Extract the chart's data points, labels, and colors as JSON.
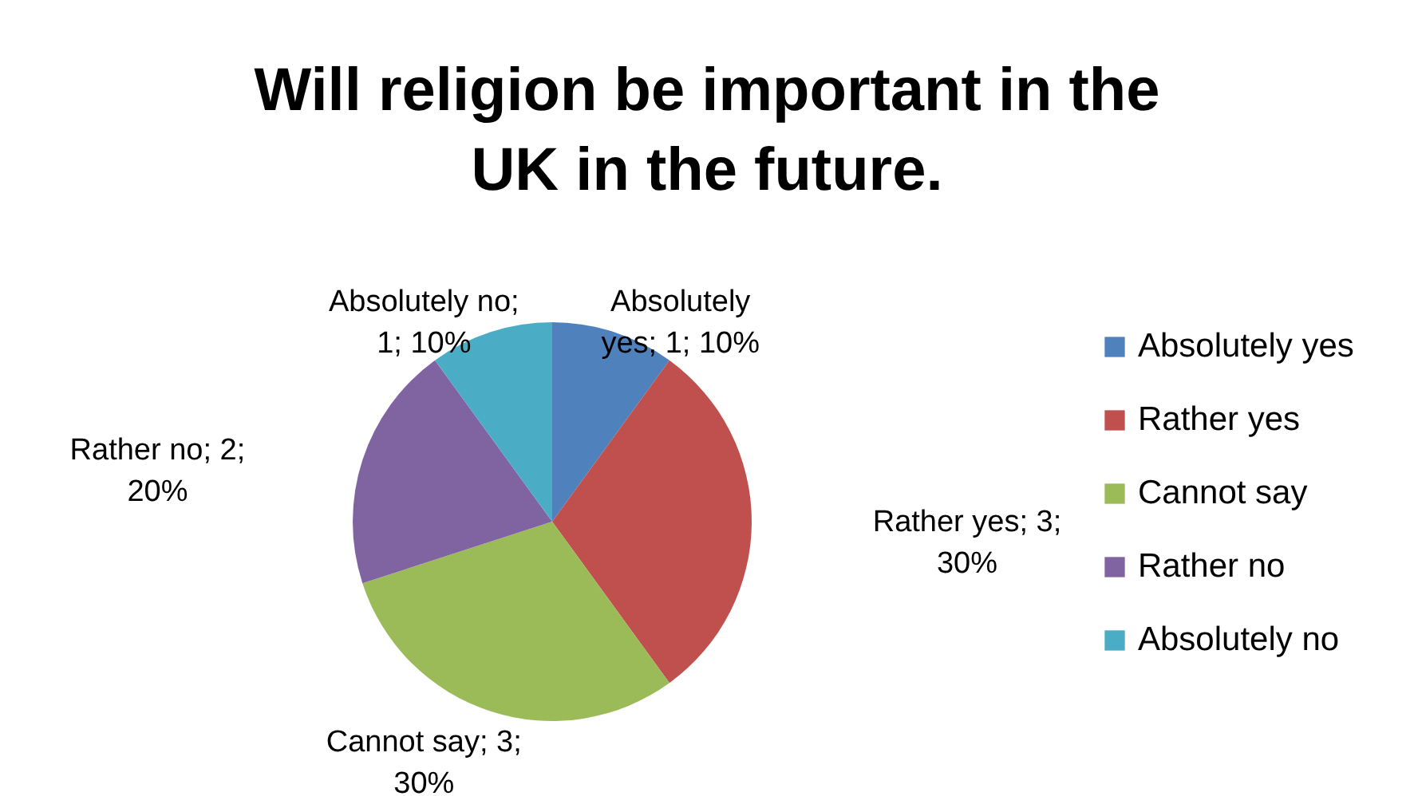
{
  "chart_data": {
    "type": "pie",
    "title": "Will religion be important in the UK in the future.",
    "categories": [
      "Absolutely yes",
      "Rather yes",
      "Cannot say",
      "Rather no",
      "Absolutely no"
    ],
    "values": [
      1,
      3,
      3,
      2,
      1
    ],
    "colors": [
      "#4f81bd",
      "#c0504d",
      "#9bbb59",
      "#8064a2",
      "#4bacc6"
    ],
    "value_labels": [
      "Absolutely yes; 1; 10%",
      "Rather yes; 3; 30%",
      "Cannot say; 3; 30%",
      "Rather no; 2; 20%",
      "Absolutely no; 1; 10%"
    ],
    "legend": "right"
  }
}
